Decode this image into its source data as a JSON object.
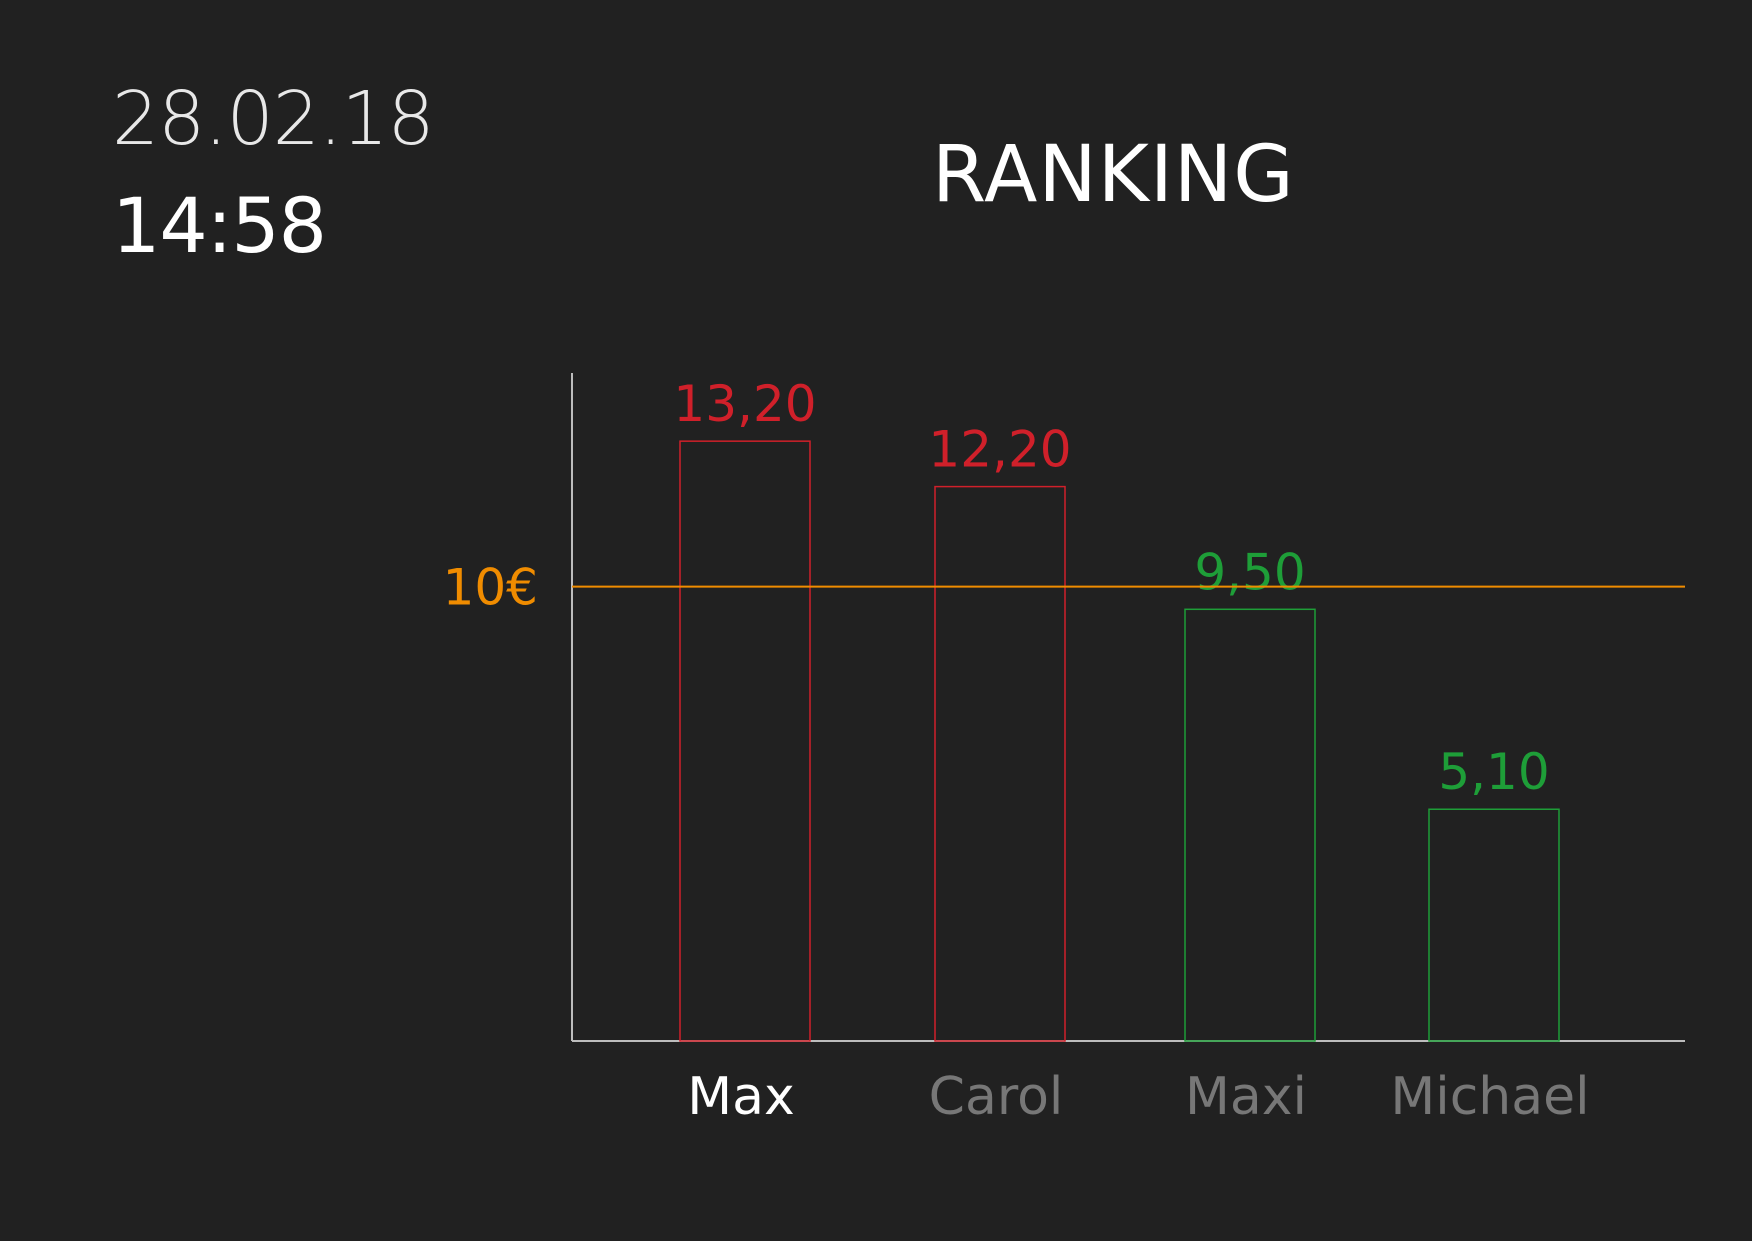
{
  "header": {
    "date": "28.02.18",
    "time": "14:58",
    "title": "RANKING"
  },
  "colors": {
    "background": "#212121",
    "over_threshold": "#d0202a",
    "under_threshold": "#1e9e38",
    "threshold": "#f08c00",
    "axis": "#bdbdbd",
    "active_label": "#ffffff",
    "inactive_label": "#777777"
  },
  "chart_data": {
    "type": "bar",
    "categories": [
      "Max",
      "Carol",
      "Maxi",
      "Michael"
    ],
    "values": [
      13.2,
      12.2,
      9.5,
      5.1
    ],
    "value_labels": [
      "13,20",
      "12,20",
      "9,50",
      "5,10"
    ],
    "threshold": {
      "value": 10,
      "label": "10€"
    },
    "highlighted_category": "Max",
    "ylim": [
      0,
      14.7
    ],
    "title": "RANKING",
    "xlabel": "",
    "ylabel": "",
    "grid": false
  }
}
